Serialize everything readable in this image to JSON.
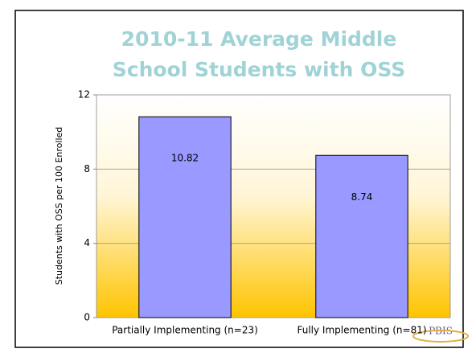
{
  "chart_data": {
    "type": "bar",
    "title_lines": [
      "2010-11 Average Middle",
      "School Students with OSS"
    ],
    "y_label": "Students with OSS per 100 Enrolled",
    "categories": [
      "Partially Implementing (n=23)",
      "Fully Implementing (n=81)"
    ],
    "values": [
      10.82,
      8.74
    ],
    "color": "#9999ff",
    "ylim": [
      0,
      12
    ],
    "yticks": [
      0,
      4,
      8,
      12
    ],
    "grid": true,
    "logo_text": "PBIS"
  }
}
